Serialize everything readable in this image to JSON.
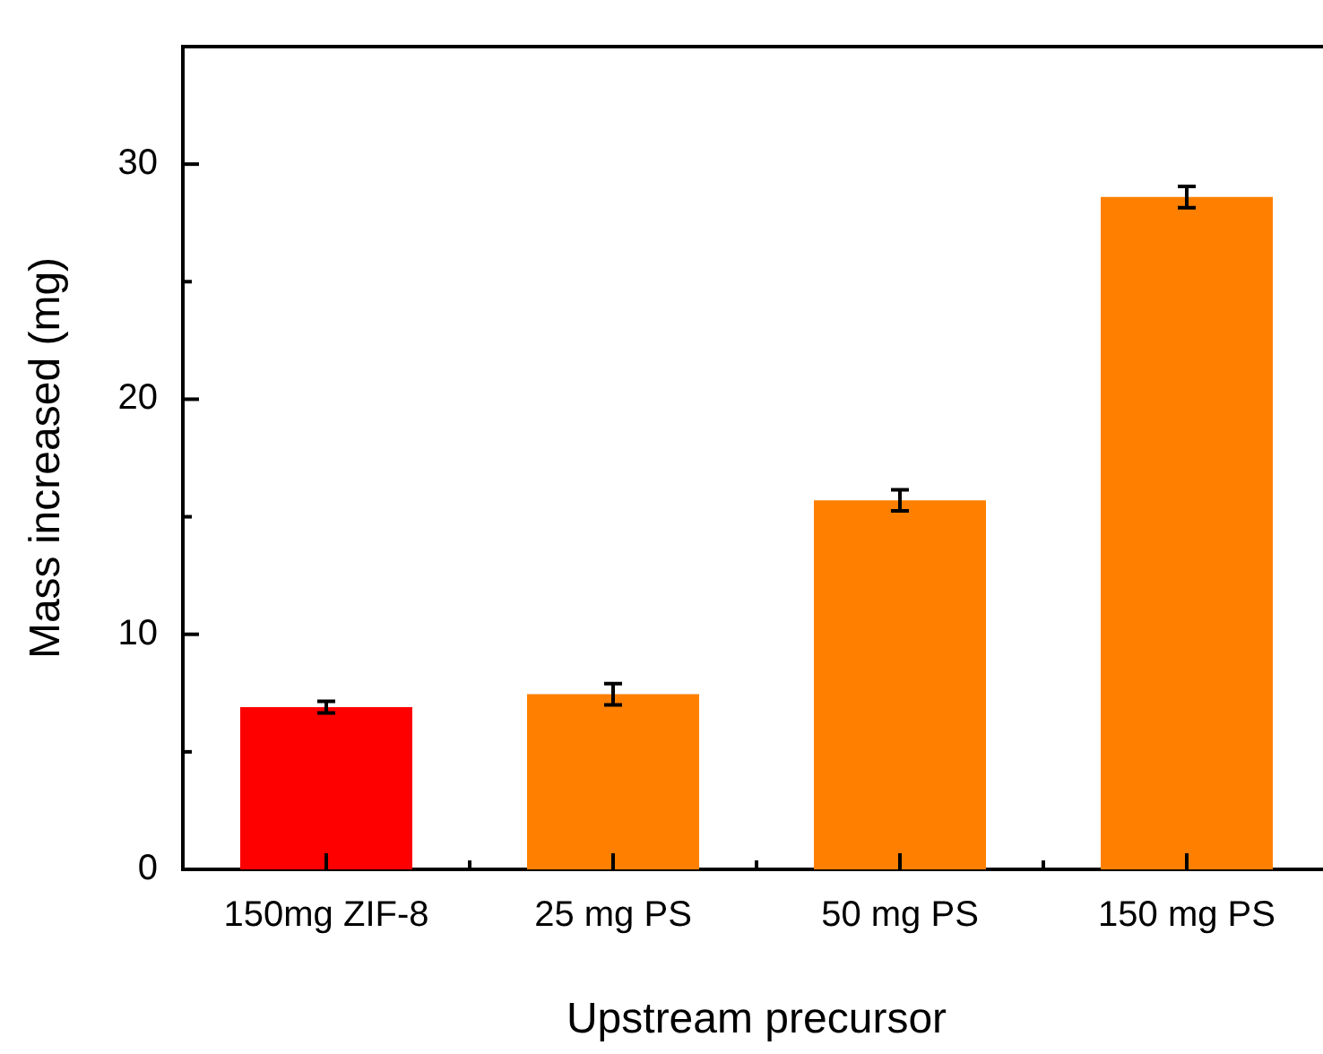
{
  "chart_data": {
    "type": "bar",
    "xlabel": "Upstream precursor",
    "ylabel": "Mass increased (mg)",
    "categories": [
      "150mg ZIF-8",
      "25 mg PS",
      "50 mg PS",
      "150 mg PS"
    ],
    "values": [
      6.9,
      7.45,
      15.7,
      28.6
    ],
    "colors": [
      "#ff0000",
      "#ff8000",
      "#ff8000",
      "#ff8000"
    ],
    "errors": [
      0.25,
      0.45,
      0.45,
      0.45
    ],
    "ylim": [
      0,
      35
    ],
    "yticks": [
      0,
      {
        "value": 5,
        "label": null
      },
      10,
      {
        "value": 15,
        "label": null
      },
      20,
      {
        "value": 25,
        "label": null
      },
      30
    ],
    "grid": false
  }
}
